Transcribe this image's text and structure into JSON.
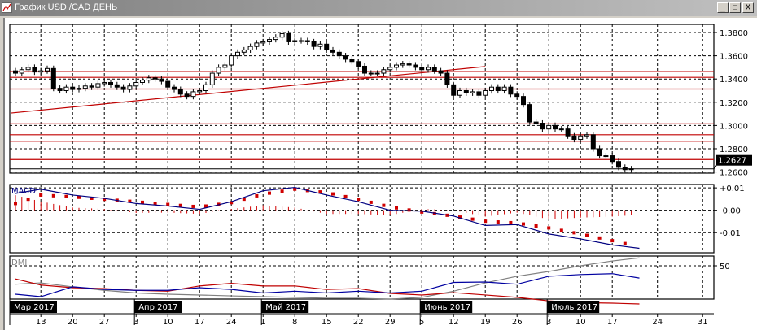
{
  "window": {
    "title": "График USD /CAD  ДЕНЬ",
    "minimize_label": "_",
    "maximize_label": "□",
    "close_label": "X"
  },
  "colors": {
    "bull_candle": "#ffffff",
    "bear_candle": "#000000",
    "support_resistance": "#c00000",
    "macd_line": "#000080",
    "signal_dots": "#d00000",
    "dmi_plus": "#0000a0",
    "dmi_minus": "#c00000",
    "adx": "#808080",
    "current_price_bg": "#000000"
  },
  "chart_data": [
    {
      "type": "candlestick",
      "instrument": "USD /CAD",
      "timeframe": "ДЕНЬ",
      "first_date": "2017-03-07",
      "closes": [
        1.345,
        1.348,
        1.35,
        1.346,
        1.347,
        1.349,
        1.332,
        1.33,
        1.333,
        1.331,
        1.332,
        1.334,
        1.333,
        1.336,
        1.337,
        1.335,
        1.333,
        1.331,
        1.334,
        1.337,
        1.339,
        1.341,
        1.34,
        1.338,
        1.333,
        1.331,
        1.327,
        1.325,
        1.329,
        1.33,
        1.335,
        1.345,
        1.35,
        1.352,
        1.36,
        1.363,
        1.365,
        1.368,
        1.371,
        1.372,
        1.374,
        1.376,
        1.379,
        1.372,
        1.373,
        1.373,
        1.372,
        1.368,
        1.37,
        1.365,
        1.363,
        1.36,
        1.357,
        1.355,
        1.351,
        1.345,
        1.345,
        1.345,
        1.348,
        1.35,
        1.352,
        1.353,
        1.352,
        1.35,
        1.348,
        1.35,
        1.347,
        1.345,
        1.335,
        1.326,
        1.33,
        1.328,
        1.329,
        1.326,
        1.33,
        1.333,
        1.33,
        1.333,
        1.327,
        1.325,
        1.318,
        1.303,
        1.302,
        1.297,
        1.3,
        1.297,
        1.297,
        1.291,
        1.288,
        1.291,
        1.292,
        1.28,
        1.274,
        1.274,
        1.269,
        1.264,
        1.262,
        1.2627
      ],
      "ylim": [
        1.259,
        1.387
      ],
      "y_ticks": [
        "1.3800",
        "1.3600",
        "1.3400",
        "1.3200",
        "1.3000",
        "1.2800",
        "1.2600"
      ],
      "current_price": "1.2627",
      "horizontal_levels": [
        1.3464,
        1.3414,
        1.3314,
        1.3014,
        1.292,
        1.2864,
        1.2707
      ],
      "trend_line": {
        "start": [
          "2017-03-06",
          1.3107
        ],
        "end": [
          "2017-06-19",
          1.3507
        ]
      },
      "grid": true
    },
    {
      "type": "line",
      "indicator": "MACD",
      "label": "MACD",
      "ylim": [
        -0.019,
        0.0115
      ],
      "y_ticks": [
        {
          "label": "+0.01",
          "value": 0.01
        },
        {
          "label": "-0.00",
          "value": 0
        },
        {
          "label": "-0.01",
          "value": -0.01
        }
      ],
      "dates": [
        "2017-03-07",
        "2017-03-13",
        "2017-03-20",
        "2017-03-27",
        "2017-04-03",
        "2017-04-10",
        "2017-04-17",
        "2017-04-24",
        "2017-05-01",
        "2017-05-08",
        "2017-05-15",
        "2017-05-22",
        "2017-05-29",
        "2017-06-05",
        "2017-06-12",
        "2017-06-19",
        "2017-06-26",
        "2017-07-03",
        "2017-07-10",
        "2017-07-17",
        "2017-07-20"
      ],
      "macd": [
        0.0075,
        0.0094,
        0.0068,
        0.0053,
        0.003,
        0.0019,
        0.0004,
        0.0038,
        0.0087,
        0.0102,
        0.0068,
        0.0038,
        0.0,
        -0.0004,
        -0.0026,
        -0.0068,
        -0.0064,
        -0.0106,
        -0.0128,
        -0.0155,
        -0.017
      ],
      "signal": [
        0.003,
        0.0068,
        0.006,
        0.0049,
        0.0038,
        0.0026,
        0.0015,
        0.0034,
        0.0072,
        0.0094,
        0.0079,
        0.0049,
        0.0015,
        -0.0008,
        -0.0026,
        -0.0049,
        -0.0057,
        -0.0079,
        -0.0106,
        -0.0136,
        -0.0155
      ],
      "grid": true
    },
    {
      "type": "line",
      "indicator": "DMI",
      "label": "DMI",
      "ylim": [
        0,
        60
      ],
      "y_ticks": [
        {
          "label": "50",
          "value": 50
        }
      ],
      "dates": [
        "2017-03-07",
        "2017-03-13",
        "2017-03-20",
        "2017-03-27",
        "2017-04-03",
        "2017-04-10",
        "2017-04-17",
        "2017-04-24",
        "2017-05-01",
        "2017-05-08",
        "2017-05-15",
        "2017-05-22",
        "2017-05-29",
        "2017-06-05",
        "2017-06-12",
        "2017-06-19",
        "2017-06-26",
        "2017-07-03",
        "2017-07-10",
        "2017-07-17",
        "2017-07-20"
      ],
      "plus_di": [
        17.6,
        14.8,
        26,
        23,
        22,
        22,
        25,
        23,
        19,
        21,
        19,
        21,
        19,
        21,
        31,
        31.5,
        29,
        38,
        40,
        41,
        36
      ],
      "minus_di": [
        35,
        28,
        25,
        24,
        22,
        21,
        27,
        30,
        27,
        27,
        23,
        24,
        18.5,
        16.7,
        19.4,
        16.7,
        14,
        10,
        8,
        7.4,
        6.5
      ],
      "adx": [
        29,
        30.5,
        26,
        22,
        19,
        17.6,
        16.7,
        15.7,
        14.8,
        14,
        13,
        13,
        12,
        14,
        21,
        30.5,
        38,
        43.5,
        50,
        55.5,
        59
      ],
      "grid": true
    }
  ],
  "x_axis": {
    "months": [
      {
        "label": "Мар 2017",
        "date": "2017-03-06"
      },
      {
        "label": "Апр 2017",
        "date": "2017-04-03"
      },
      {
        "label": "Май 2017",
        "date": "2017-05-01"
      },
      {
        "label": "Июнь 2017",
        "date": "2017-06-05"
      },
      {
        "label": "Июль 2017",
        "date": "2017-07-03"
      }
    ],
    "ticks": [
      {
        "label": "13",
        "date": "2017-03-13"
      },
      {
        "label": "20",
        "date": "2017-03-20"
      },
      {
        "label": "27",
        "date": "2017-03-27"
      },
      {
        "label": "3",
        "date": "2017-04-03"
      },
      {
        "label": "10",
        "date": "2017-04-10"
      },
      {
        "label": "17",
        "date": "2017-04-17"
      },
      {
        "label": "24",
        "date": "2017-04-24"
      },
      {
        "label": "1",
        "date": "2017-05-01"
      },
      {
        "label": "8",
        "date": "2017-05-08"
      },
      {
        "label": "15",
        "date": "2017-05-15"
      },
      {
        "label": "22",
        "date": "2017-05-22"
      },
      {
        "label": "29",
        "date": "2017-05-29"
      },
      {
        "label": "5",
        "date": "2017-06-05"
      },
      {
        "label": "12",
        "date": "2017-06-12"
      },
      {
        "label": "19",
        "date": "2017-06-19"
      },
      {
        "label": "26",
        "date": "2017-06-26"
      },
      {
        "label": "3",
        "date": "2017-07-03"
      },
      {
        "label": "10",
        "date": "2017-07-10"
      },
      {
        "label": "17",
        "date": "2017-07-17"
      },
      {
        "label": "24",
        "date": "2017-07-24"
      },
      {
        "label": "31",
        "date": "2017-07-31"
      }
    ]
  }
}
